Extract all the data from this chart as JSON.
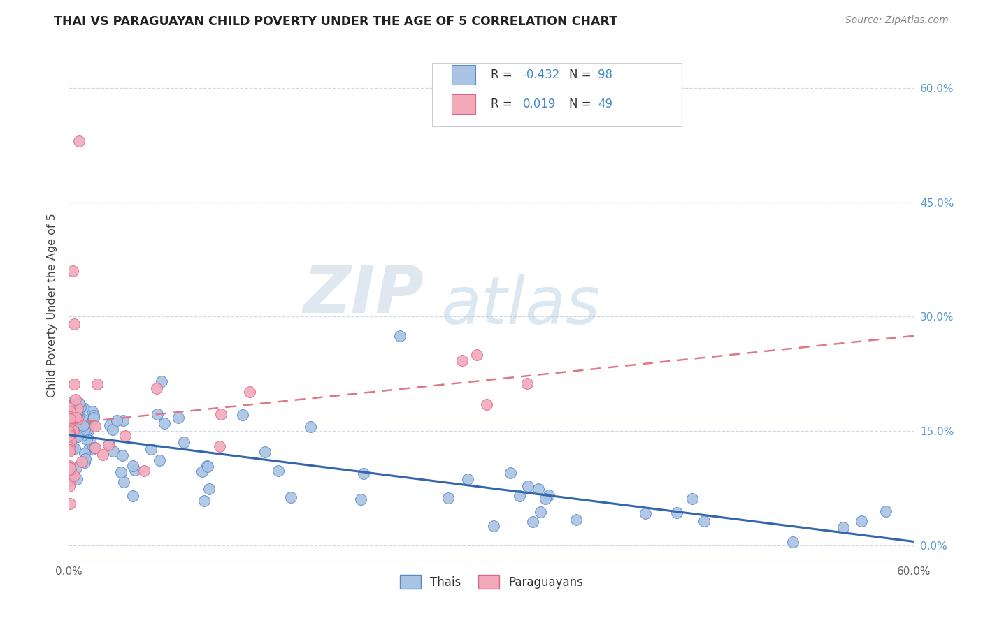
{
  "title": "THAI VS PARAGUAYAN CHILD POVERTY UNDER THE AGE OF 5 CORRELATION CHART",
  "source": "Source: ZipAtlas.com",
  "ylabel": "Child Poverty Under the Age of 5",
  "xlim": [
    0.0,
    0.6
  ],
  "ylim": [
    -0.02,
    0.65
  ],
  "xticks": [
    0.0,
    0.1,
    0.2,
    0.3,
    0.4,
    0.5,
    0.6
  ],
  "xtick_labels": [
    "0.0%",
    "",
    "",
    "",
    "",
    "",
    "60.0%"
  ],
  "yticks_right": [
    0.0,
    0.15,
    0.3,
    0.45,
    0.6
  ],
  "ytick_labels_right": [
    "0.0%",
    "15.0%",
    "30.0%",
    "45.0%",
    "60.0%"
  ],
  "grid_color": "#d0d8e8",
  "background_color": "#ffffff",
  "thai_color": "#aac4e4",
  "paraguayan_color": "#f2aabb",
  "thai_edge_color": "#5588cc",
  "paraguayan_edge_color": "#dd6688",
  "thai_line_color": "#3366aa",
  "paraguayan_line_color": "#dd7788",
  "legend_thai_label": "Thais",
  "legend_paraguayan_label": "Paraguayans",
  "R_thai": -0.432,
  "N_thai": 98,
  "R_paraguayan": 0.019,
  "N_paraguayan": 49,
  "thai_trend_x0": 0.0,
  "thai_trend_y0": 0.145,
  "thai_trend_x1": 0.6,
  "thai_trend_y1": 0.005,
  "parag_trend_x0": 0.0,
  "parag_trend_y0": 0.16,
  "parag_trend_x1": 0.6,
  "parag_trend_y1": 0.275,
  "watermark_zip_color": "#c8d8e8",
  "watermark_atlas_color": "#b8cce0",
  "marker_size": 130
}
